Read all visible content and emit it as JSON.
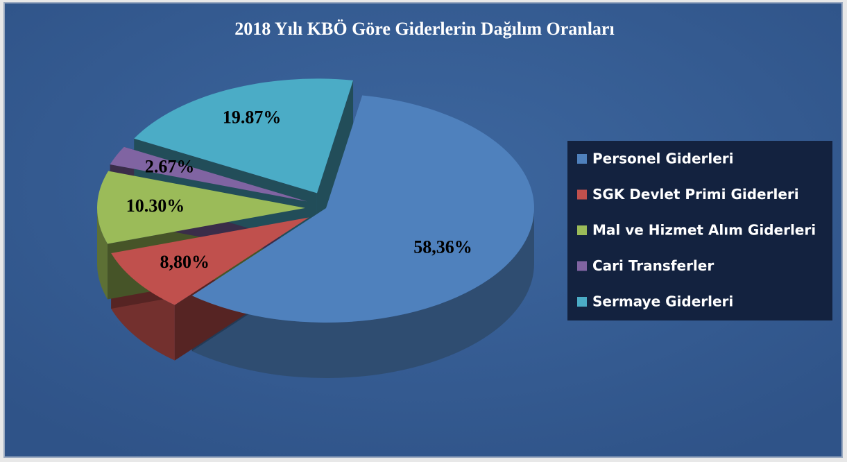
{
  "chart_data": {
    "type": "pie",
    "title": "2018 Yılı KBÖ Göre Giderlerin Dağılım Oranları",
    "categories": [
      "Personel Giderleri",
      "SGK Devlet Primi Giderleri",
      "Mal ve Hizmet Alım Giderleri",
      "Cari Transferler",
      "Sermaye Giderleri"
    ],
    "values": [
      58.36,
      8.8,
      10.3,
      2.67,
      19.87
    ],
    "value_labels": [
      "58,36%",
      "8,80%",
      "10.30%",
      "2.67%",
      "19.87%"
    ],
    "colors": [
      "#4f81bd",
      "#c0504d",
      "#9bbb59",
      "#8064a2",
      "#4bacc6"
    ],
    "legend": "right"
  }
}
